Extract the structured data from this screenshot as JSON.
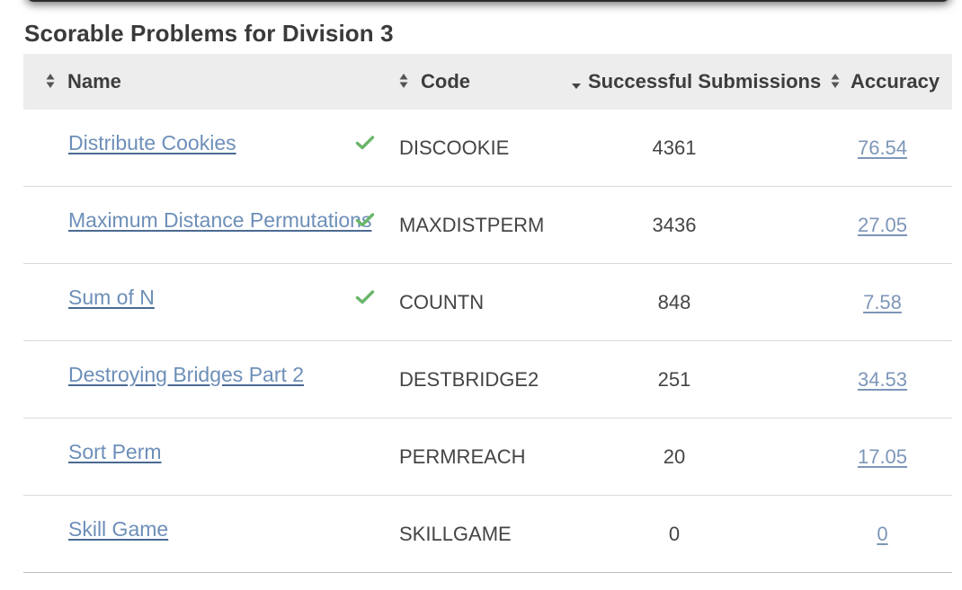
{
  "section": {
    "title": "Scorable Problems for Division 3"
  },
  "table": {
    "headers": {
      "name": "Name",
      "code": "Code",
      "successful_submissions": "Successful Submissions",
      "accuracy": "Accuracy"
    },
    "sorted_column": "successful_submissions",
    "sort_direction": "descending",
    "rows": [
      {
        "name": "Distribute Cookies",
        "solved": true,
        "code": "DISCOOKIE",
        "submissions": "4361",
        "accuracy": "76.54"
      },
      {
        "name": "Maximum Distance Permutations",
        "solved": true,
        "code": "MAXDISTPERM",
        "submissions": "3436",
        "accuracy": "27.05"
      },
      {
        "name": "Sum of N",
        "solved": true,
        "code": "COUNTN",
        "submissions": "848",
        "accuracy": "7.58"
      },
      {
        "name": "Destroying Bridges Part 2",
        "solved": false,
        "code": "DESTBRIDGE2",
        "submissions": "251",
        "accuracy": "34.53"
      },
      {
        "name": "Sort Perm",
        "solved": false,
        "code": "PERMREACH",
        "submissions": "20",
        "accuracy": "17.05"
      },
      {
        "name": "Skill Game",
        "solved": false,
        "code": "SKILLGAME",
        "submissions": "0",
        "accuracy": "0"
      }
    ]
  },
  "colors": {
    "header_bg": "#ededed",
    "link": "#6d8fb8",
    "check": "#6ab56a"
  },
  "icons": {
    "sort": "sort-both-icon",
    "sort_active": "sort-down-icon",
    "solved": "checkmark-icon"
  }
}
